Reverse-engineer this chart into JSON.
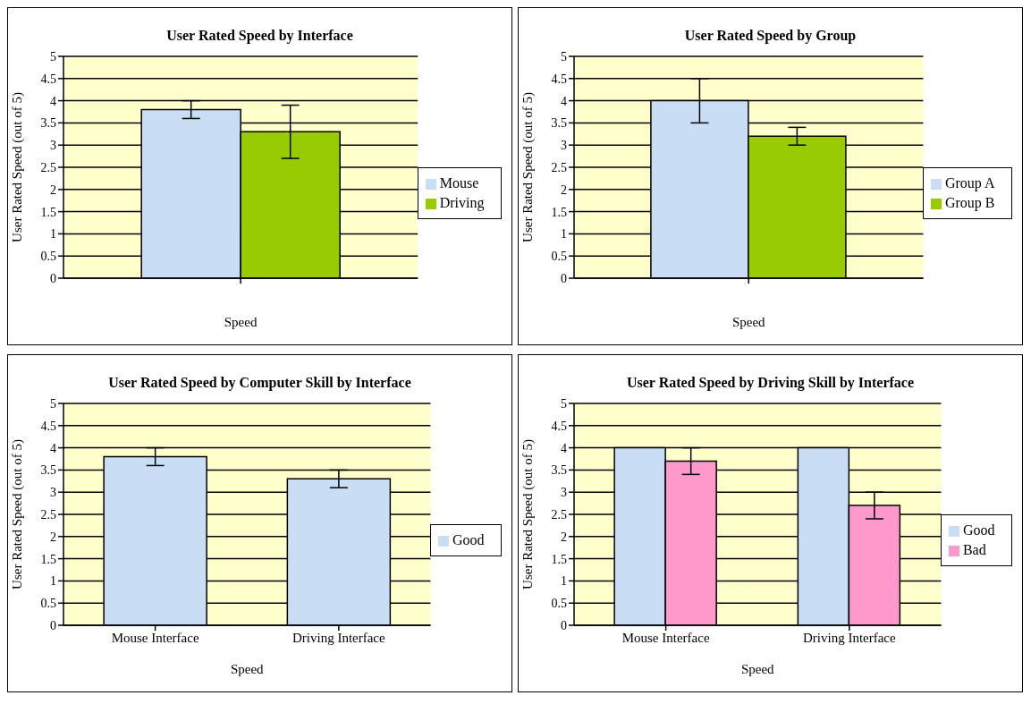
{
  "chart_data": [
    {
      "type": "bar",
      "title": "User Rated Speed by Interface",
      "xlabel": "Speed",
      "ylabel": "User Rated Speed (out of 5)",
      "categories": [
        null
      ],
      "series": [
        {
          "name": "Mouse",
          "color": "#c9def5",
          "values": [
            3.8
          ],
          "errors": [
            0.2
          ]
        },
        {
          "name": "Driving",
          "color": "#99cc00",
          "values": [
            3.3
          ],
          "errors": [
            0.6
          ]
        }
      ],
      "ylim": [
        0,
        5
      ],
      "yticks": [
        0,
        0.5,
        1,
        1.5,
        2,
        2.5,
        3,
        3.5,
        4,
        4.5,
        5
      ],
      "grid": "y",
      "legend": "right"
    },
    {
      "type": "bar",
      "title": "User Rated Speed by Group",
      "xlabel": "Speed",
      "ylabel": "User Rated Speed (out of 5)",
      "categories": [
        null
      ],
      "series": [
        {
          "name": "Group A",
          "color": "#c9def5",
          "values": [
            4.0
          ],
          "errors": [
            0.5
          ]
        },
        {
          "name": "Group B",
          "color": "#99cc00",
          "values": [
            3.2
          ],
          "errors": [
            0.2
          ]
        }
      ],
      "ylim": [
        0,
        5
      ],
      "yticks": [
        0,
        0.5,
        1,
        1.5,
        2,
        2.5,
        3,
        3.5,
        4,
        4.5,
        5
      ],
      "grid": "y",
      "legend": "right"
    },
    {
      "type": "bar",
      "title": "User Rated Speed by Computer Skill by Interface",
      "xlabel": "Speed",
      "ylabel": "User Rated Speed (out of 5)",
      "categories": [
        "Mouse Interface",
        "Driving Interface"
      ],
      "series": [
        {
          "name": "Good",
          "color": "#c9def5",
          "values": [
            3.8,
            3.3
          ],
          "errors": [
            0.2,
            0.2
          ]
        }
      ],
      "ylim": [
        0,
        5
      ],
      "yticks": [
        0,
        0.5,
        1,
        1.5,
        2,
        2.5,
        3,
        3.5,
        4,
        4.5,
        5
      ],
      "grid": "y",
      "legend": "right"
    },
    {
      "type": "bar",
      "title": "User Rated Speed by Driving Skill by Interface",
      "xlabel": "Speed",
      "ylabel": "User Rated Speed (out of 5)",
      "categories": [
        "Mouse Interface",
        "Driving Interface"
      ],
      "series": [
        {
          "name": "Good",
          "color": "#c9def5",
          "values": [
            4.0,
            4.0
          ]
        },
        {
          "name": "Bad",
          "color": "#ff99cc",
          "values": [
            3.7,
            2.7
          ],
          "errors": [
            0.3,
            0.3
          ]
        }
      ],
      "ylim": [
        0,
        5
      ],
      "yticks": [
        0,
        0.5,
        1,
        1.5,
        2,
        2.5,
        3,
        3.5,
        4,
        4.5,
        5
      ],
      "grid": "y",
      "legend": "right"
    }
  ]
}
